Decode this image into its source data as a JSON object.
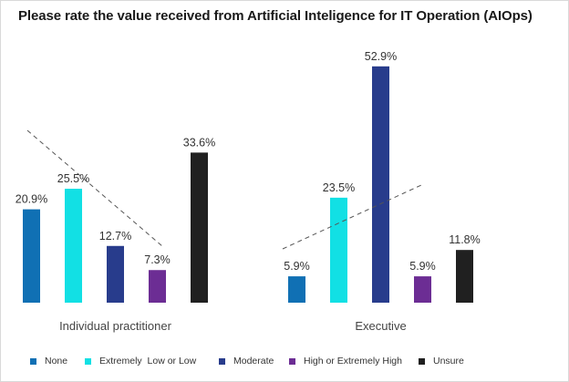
{
  "title": "Please rate the value received from Artificial Inteligence for IT Operation (AIOps)",
  "chart_data": {
    "type": "bar",
    "title": "Please rate the value received from Artificial Inteligence for IT Operation (AIOps)",
    "categories": [
      "Individual practitioner",
      "Executive"
    ],
    "series": [
      {
        "name": "None",
        "color": "#1070B4",
        "values": [
          20.9,
          5.9
        ],
        "labels": [
          "20.9%",
          "5.9%"
        ]
      },
      {
        "name": "Extremely  Low or Low",
        "color": "#12E0E4",
        "values": [
          25.5,
          23.5
        ],
        "labels": [
          "25.5%",
          "23.5%"
        ]
      },
      {
        "name": "Moderate",
        "color": "#283C8C",
        "values": [
          12.7,
          52.9
        ],
        "labels": [
          "12.7%",
          "52.9%"
        ]
      },
      {
        "name": "High or Extremely High",
        "color": "#6C2D94",
        "values": [
          7.3,
          5.9
        ],
        "labels": [
          "7.3%",
          "5.9%"
        ]
      },
      {
        "name": "Unsure",
        "color": "#202020",
        "values": [
          33.6,
          11.8
        ],
        "labels": [
          "33.6%",
          "11.8%"
        ]
      }
    ],
    "trendlines": [
      {
        "group": "Individual practitioner",
        "style": "dashed",
        "direction": "down"
      },
      {
        "group": "Executive",
        "style": "dashed",
        "direction": "up"
      }
    ],
    "ylim": [
      0,
      60
    ],
    "xlabel": "",
    "ylabel": "",
    "grid": false,
    "legend_position": "bottom"
  }
}
